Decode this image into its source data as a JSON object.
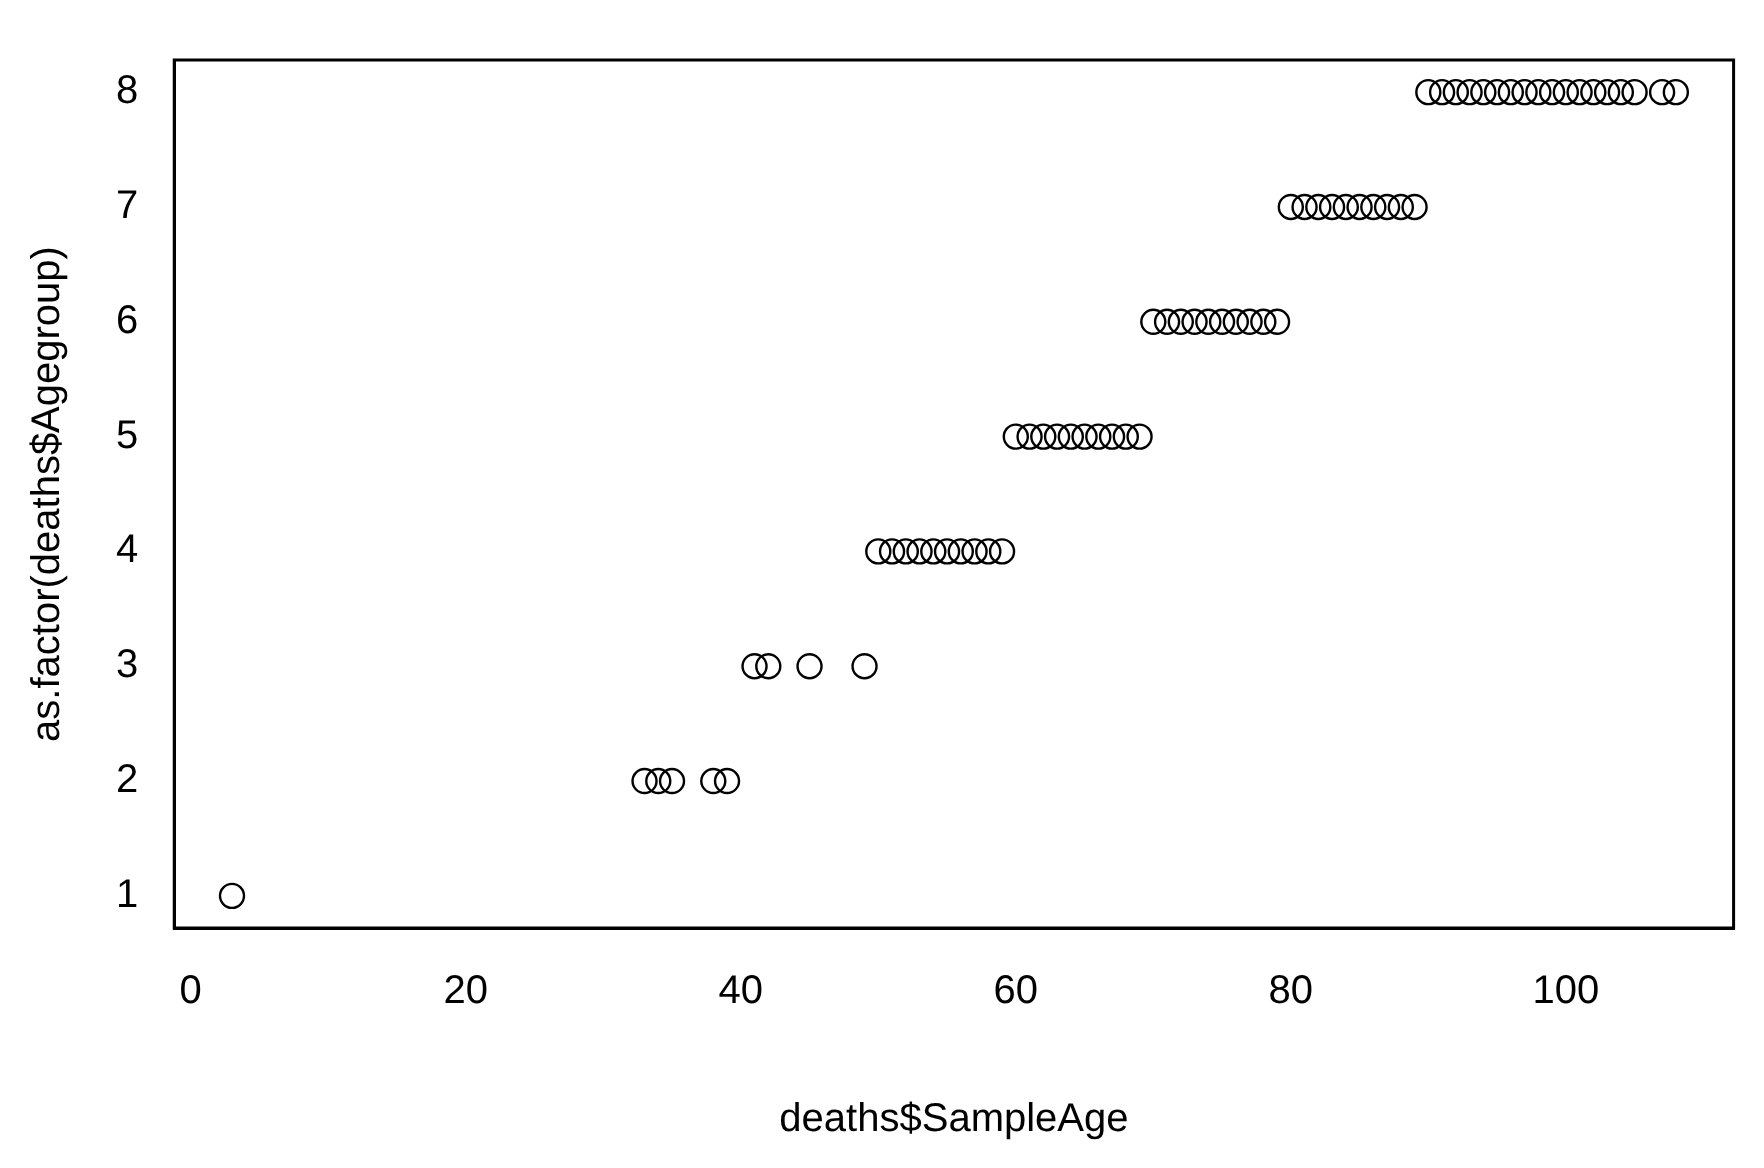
{
  "chart_data": {
    "type": "scatter",
    "xlabel": "deaths$SampleAge",
    "ylabel": "as.factor(deaths$Agegroup)",
    "x": [
      3,
      33,
      34,
      35,
      38,
      39,
      41,
      42,
      45,
      49,
      50,
      51,
      52,
      53,
      54,
      55,
      56,
      57,
      58,
      59,
      60,
      61,
      62,
      63,
      64,
      65,
      66,
      67,
      68,
      69,
      70,
      71,
      72,
      73,
      74,
      75,
      76,
      77,
      78,
      79,
      80,
      81,
      82,
      83,
      84,
      85,
      86,
      87,
      88,
      89,
      90,
      91,
      92,
      93,
      94,
      95,
      96,
      97,
      98,
      99,
      100,
      101,
      102,
      103,
      104,
      105,
      107,
      108
    ],
    "series": [
      {
        "color": "#000000",
        "values": [
          1,
          2,
          2,
          2,
          2,
          2,
          3,
          3,
          3,
          3,
          4,
          4,
          4,
          4,
          4,
          4,
          4,
          4,
          4,
          4,
          5,
          5,
          5,
          5,
          5,
          5,
          5,
          5,
          5,
          5,
          6,
          6,
          6,
          6,
          6,
          6,
          6,
          6,
          6,
          6,
          7,
          7,
          7,
          7,
          7,
          7,
          7,
          7,
          7,
          7,
          8,
          8,
          8,
          8,
          8,
          8,
          8,
          8,
          8,
          8,
          8,
          8,
          8,
          8,
          8,
          8,
          8,
          8
        ]
      }
    ],
    "xlim": [
      -1.2,
      112.2
    ],
    "xticks": [
      0,
      20,
      40,
      60,
      80,
      100
    ],
    "ylim": [
      0.72,
      8.28
    ],
    "yticks": [
      1,
      2,
      3,
      4,
      5,
      6,
      7,
      8
    ],
    "marker": "circle",
    "grid": false,
    "legend": false
  }
}
